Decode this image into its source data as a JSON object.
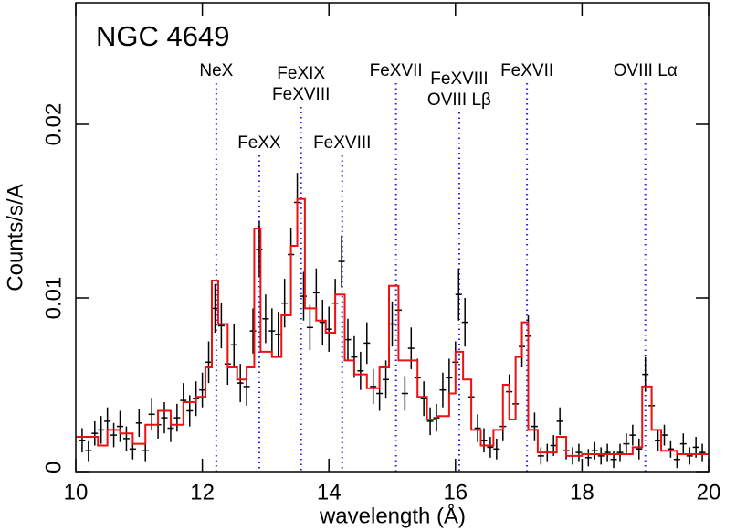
{
  "chart_data": {
    "type": "errorbar",
    "title": "NGC 4649",
    "x_label": "wavelength (Å)",
    "y_label": "Counts/s/A",
    "xlim": [
      10,
      20
    ],
    "ylim": [
      0,
      0.027
    ],
    "xticks": [
      10,
      12,
      14,
      16,
      18,
      20
    ],
    "yticks": [
      0,
      0.01,
      0.02
    ],
    "series": [
      {
        "type": "errorbar",
        "color": "#000000",
        "x": [
          10.1,
          10.2,
          10.3,
          10.4,
          10.5,
          10.6,
          10.7,
          10.8,
          10.9,
          11.0,
          11.1,
          11.2,
          11.3,
          11.4,
          11.5,
          11.6,
          11.7,
          11.8,
          11.9,
          12.0,
          12.1,
          12.2,
          12.3,
          12.4,
          12.5,
          12.6,
          12.7,
          12.8,
          12.9,
          13.0,
          13.1,
          13.2,
          13.3,
          13.4,
          13.5,
          13.6,
          13.7,
          13.8,
          13.9,
          14.0,
          14.1,
          14.2,
          14.3,
          14.4,
          14.5,
          14.6,
          14.7,
          14.8,
          14.9,
          15.0,
          15.1,
          15.2,
          15.3,
          15.4,
          15.5,
          15.6,
          15.7,
          15.8,
          15.9,
          16.0,
          16.05,
          16.15,
          16.25,
          16.35,
          16.45,
          16.55,
          16.65,
          16.75,
          16.85,
          16.95,
          17.05,
          17.15,
          17.25,
          17.35,
          17.45,
          17.55,
          17.65,
          17.75,
          17.85,
          17.95,
          18.1,
          18.2,
          18.3,
          18.4,
          18.5,
          18.6,
          18.7,
          18.8,
          18.9,
          19.0,
          19.1,
          19.2,
          19.3,
          19.4,
          19.5,
          19.6,
          19.7,
          19.8,
          19.9
        ],
        "values": [
          0.0018,
          0.0012,
          0.0022,
          0.0024,
          0.0029,
          0.0021,
          0.0026,
          0.0019,
          0.0013,
          0.0028,
          0.0012,
          0.0033,
          0.0027,
          0.0031,
          0.0025,
          0.0031,
          0.0041,
          0.0035,
          0.0042,
          0.0047,
          0.0063,
          0.0094,
          0.0084,
          0.0062,
          0.0073,
          0.0051,
          0.0049,
          0.0081,
          0.0128,
          0.0088,
          0.0081,
          0.0079,
          0.0097,
          0.0125,
          0.0155,
          0.0101,
          0.0083,
          0.0103,
          0.0086,
          0.0082,
          0.0097,
          0.0121,
          0.0076,
          0.0066,
          0.0058,
          0.0074,
          0.0049,
          0.0045,
          0.0053,
          0.0085,
          0.0093,
          0.0045,
          0.0071,
          0.0054,
          0.0042,
          0.0029,
          0.0031,
          0.0047,
          0.0054,
          0.0063,
          0.0102,
          0.0086,
          0.0043,
          0.0025,
          0.0018,
          0.0014,
          0.0013,
          0.0026,
          0.0046,
          0.0039,
          0.0072,
          0.0078,
          0.0026,
          0.0009,
          0.0011,
          0.0015,
          0.0029,
          0.0012,
          0.0009,
          0.0011,
          0.0008,
          0.0012,
          0.0009,
          0.0011,
          0.0007,
          0.0011,
          0.0016,
          0.0021,
          0.0013,
          0.0056,
          0.0038,
          0.0018,
          0.0021,
          0.0013,
          0.0007,
          0.0016,
          0.0009,
          0.0014,
          0.0011
        ],
        "errors": [
          0.0007,
          0.0006,
          0.0007,
          0.0008,
          0.0008,
          0.0007,
          0.0009,
          0.0007,
          0.0006,
          0.0008,
          0.0006,
          0.0009,
          0.0008,
          0.0009,
          0.0008,
          0.0008,
          0.001,
          0.0009,
          0.001,
          0.001,
          0.0012,
          0.0014,
          0.0013,
          0.0012,
          0.0012,
          0.0011,
          0.0011,
          0.0013,
          0.0016,
          0.0014,
          0.0013,
          0.0013,
          0.0014,
          0.0015,
          0.0017,
          0.0014,
          0.0013,
          0.0014,
          0.0013,
          0.0013,
          0.0014,
          0.0015,
          0.0012,
          0.0012,
          0.0011,
          0.0012,
          0.001,
          0.001,
          0.0011,
          0.0013,
          0.0014,
          0.001,
          0.0012,
          0.0011,
          0.001,
          0.0008,
          0.0008,
          0.001,
          0.0011,
          0.0012,
          0.0015,
          0.0014,
          0.001,
          0.0008,
          0.0007,
          0.0006,
          0.0006,
          0.0008,
          0.001,
          0.0009,
          0.0012,
          0.0012,
          0.0008,
          0.0005,
          0.0005,
          0.0006,
          0.0008,
          0.0005,
          0.0005,
          0.0005,
          0.0005,
          0.0005,
          0.0005,
          0.0005,
          0.0005,
          0.0005,
          0.0006,
          0.0006,
          0.0006,
          0.001,
          0.0009,
          0.0006,
          0.0006,
          0.0005,
          0.0005,
          0.0006,
          0.0005,
          0.0006,
          0.0005
        ]
      },
      {
        "type": "step",
        "color": "#ee1111",
        "bins": [
          10,
          10.35,
          10.5,
          10.7,
          10.9,
          11.1,
          11.3,
          11.5,
          11.7,
          11.9,
          12.05,
          12.15,
          12.25,
          12.4,
          12.55,
          12.7,
          12.82,
          12.92,
          13.1,
          13.25,
          13.4,
          13.5,
          13.62,
          13.8,
          13.95,
          14.1,
          14.25,
          14.4,
          14.6,
          14.8,
          14.95,
          15.1,
          15.25,
          15.4,
          15.55,
          15.7,
          15.9,
          16.0,
          16.12,
          16.25,
          16.4,
          16.6,
          16.75,
          16.85,
          16.95,
          17.05,
          17.15,
          17.3,
          17.6,
          17.75,
          18.0,
          18.8,
          18.95,
          19.1,
          19.25,
          19.5,
          20
        ],
        "values": [
          0.002,
          0.0015,
          0.0024,
          0.0022,
          0.0016,
          0.0027,
          0.0035,
          0.0027,
          0.004,
          0.0043,
          0.006,
          0.011,
          0.0085,
          0.006,
          0.0053,
          0.006,
          0.014,
          0.0069,
          0.0066,
          0.009,
          0.013,
          0.0157,
          0.0094,
          0.0087,
          0.008,
          0.0102,
          0.0064,
          0.0056,
          0.0048,
          0.006,
          0.0107,
          0.0064,
          0.0064,
          0.0043,
          0.003,
          0.0032,
          0.0045,
          0.0069,
          0.0053,
          0.0024,
          0.0015,
          0.0024,
          0.005,
          0.003,
          0.0066,
          0.0086,
          0.0024,
          0.0011,
          0.002,
          0.0009,
          0.001,
          0.0014,
          0.0049,
          0.0024,
          0.0012,
          0.001
        ]
      }
    ],
    "lines": [
      {
        "x": 12.22,
        "label": [
          "NeX"
        ]
      },
      {
        "x": 12.9,
        "label": [
          "FeXX"
        ]
      },
      {
        "x": 13.56,
        "label": [
          "FeXIX",
          "FeXVIII"
        ]
      },
      {
        "x": 14.21,
        "label": [
          "FeXVIII"
        ]
      },
      {
        "x": 15.06,
        "label": [
          "FeXVII"
        ]
      },
      {
        "x": 16.06,
        "label": [
          "FeXVIII",
          "OVIII Lβ"
        ]
      },
      {
        "x": 17.13,
        "label": [
          "FeXVII"
        ]
      },
      {
        "x": 19.0,
        "label": [
          "OVIII Lα"
        ]
      }
    ],
    "line_color": "#2222dd"
  }
}
